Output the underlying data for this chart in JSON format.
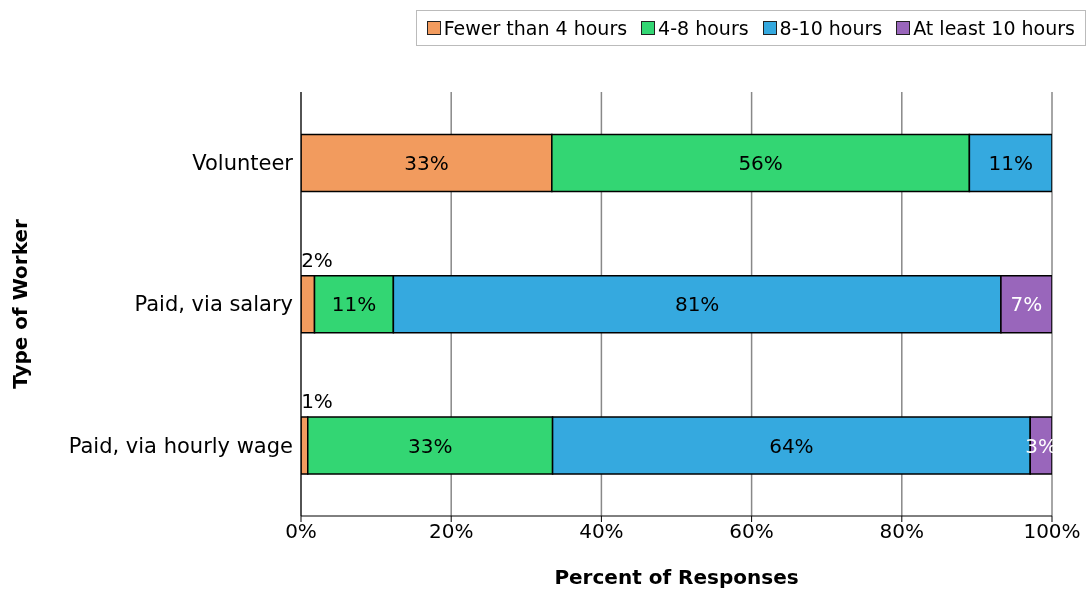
{
  "chart_data": {
    "type": "bar",
    "orientation": "horizontal",
    "stacked": true,
    "xlabel": "Percent of Responses",
    "ylabel": "Type of Worker",
    "categories": [
      "Volunteer",
      "Paid, via salary",
      "Paid, via hourly wage"
    ],
    "series": [
      {
        "name": "Fewer than 4 hours",
        "color": "#f29b5e",
        "values": [
          33.4,
          1.8,
          0.9
        ],
        "value_labels": [
          "33%",
          "2%",
          "1%"
        ]
      },
      {
        "name": "4-8 hours",
        "color": "#33d673",
        "values": [
          55.6,
          10.5,
          32.6
        ],
        "value_labels": [
          "56%",
          "11%",
          "33%"
        ]
      },
      {
        "name": "8-10 hours",
        "color": "#35a9df",
        "values": [
          11.0,
          80.9,
          63.6
        ],
        "value_labels": [
          "11%",
          "81%",
          "64%"
        ]
      },
      {
        "name": "At least 10 hours",
        "color": "#9966bb",
        "values": [
          null,
          6.8,
          2.9
        ],
        "value_labels": [
          null,
          "7%",
          "3%"
        ]
      }
    ],
    "xlim": [
      0,
      100
    ],
    "xticks": [
      {
        "value": 0,
        "label": "0%"
      },
      {
        "value": 20,
        "label": "20%"
      },
      {
        "value": 40,
        "label": "40%"
      },
      {
        "value": 60,
        "label": "60%"
      },
      {
        "value": 80,
        "label": "80%"
      },
      {
        "value": 100,
        "label": "100%"
      }
    ],
    "grid": "x",
    "legend": "top right"
  }
}
